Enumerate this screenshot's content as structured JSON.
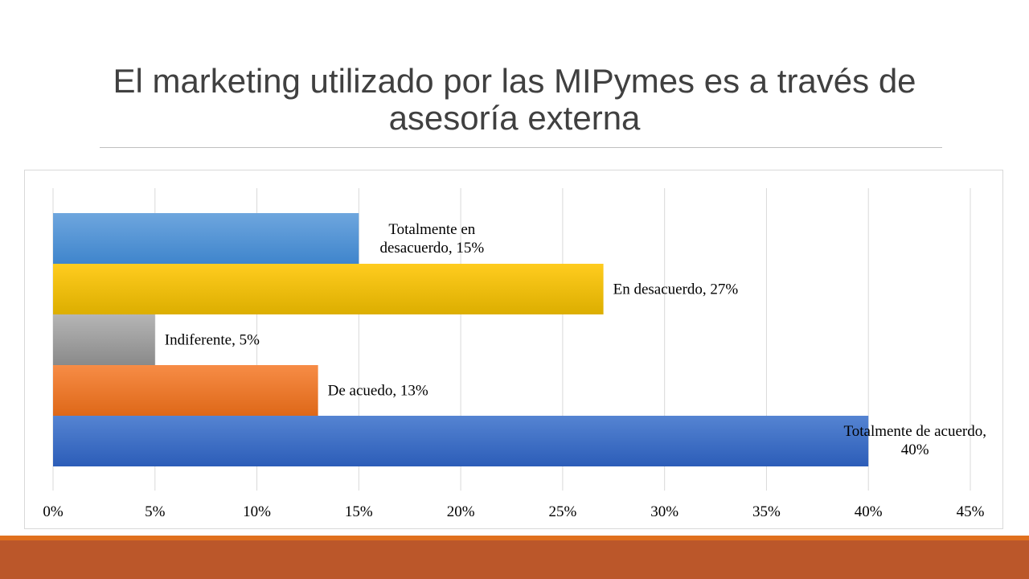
{
  "slide": {
    "title": "El marketing utilizado por las MIPymes es a través de asesoría externa"
  },
  "chart_data": {
    "type": "bar",
    "orientation": "horizontal",
    "categories": [
      "Totalmente en desacuerdo",
      "En desacuerdo",
      "Indiferente",
      "De acuedo",
      "Totalmente de acuerdo"
    ],
    "values": [
      15,
      27,
      5,
      13,
      40
    ],
    "value_unit": "%",
    "data_labels": [
      [
        "Totalmente en",
        "desacuerdo, 15%"
      ],
      [
        "En desacuerdo, 27%"
      ],
      [
        "Indiferente, 5%"
      ],
      [
        "De acuedo, 13%"
      ],
      [
        "Totalmente de acuerdo,",
        "40%"
      ]
    ],
    "colors": [
      [
        "#6ea6de",
        "#3f85cc"
      ],
      [
        "#ffcc1f",
        "#dcae00"
      ],
      [
        "#b5b5b5",
        "#8a8a8a"
      ],
      [
        "#f78c46",
        "#de6818"
      ],
      [
        "#5584d2",
        "#2c5db8"
      ]
    ],
    "xlim": [
      0,
      45
    ],
    "x_ticks": [
      0,
      5,
      10,
      15,
      20,
      25,
      30,
      35,
      40,
      45
    ],
    "x_tick_labels": [
      "0%",
      "5%",
      "10%",
      "15%",
      "20%",
      "25%",
      "30%",
      "35%",
      "40%",
      "45%"
    ],
    "grid": true,
    "legend": "none",
    "title": "",
    "xlabel": "",
    "ylabel": ""
  }
}
